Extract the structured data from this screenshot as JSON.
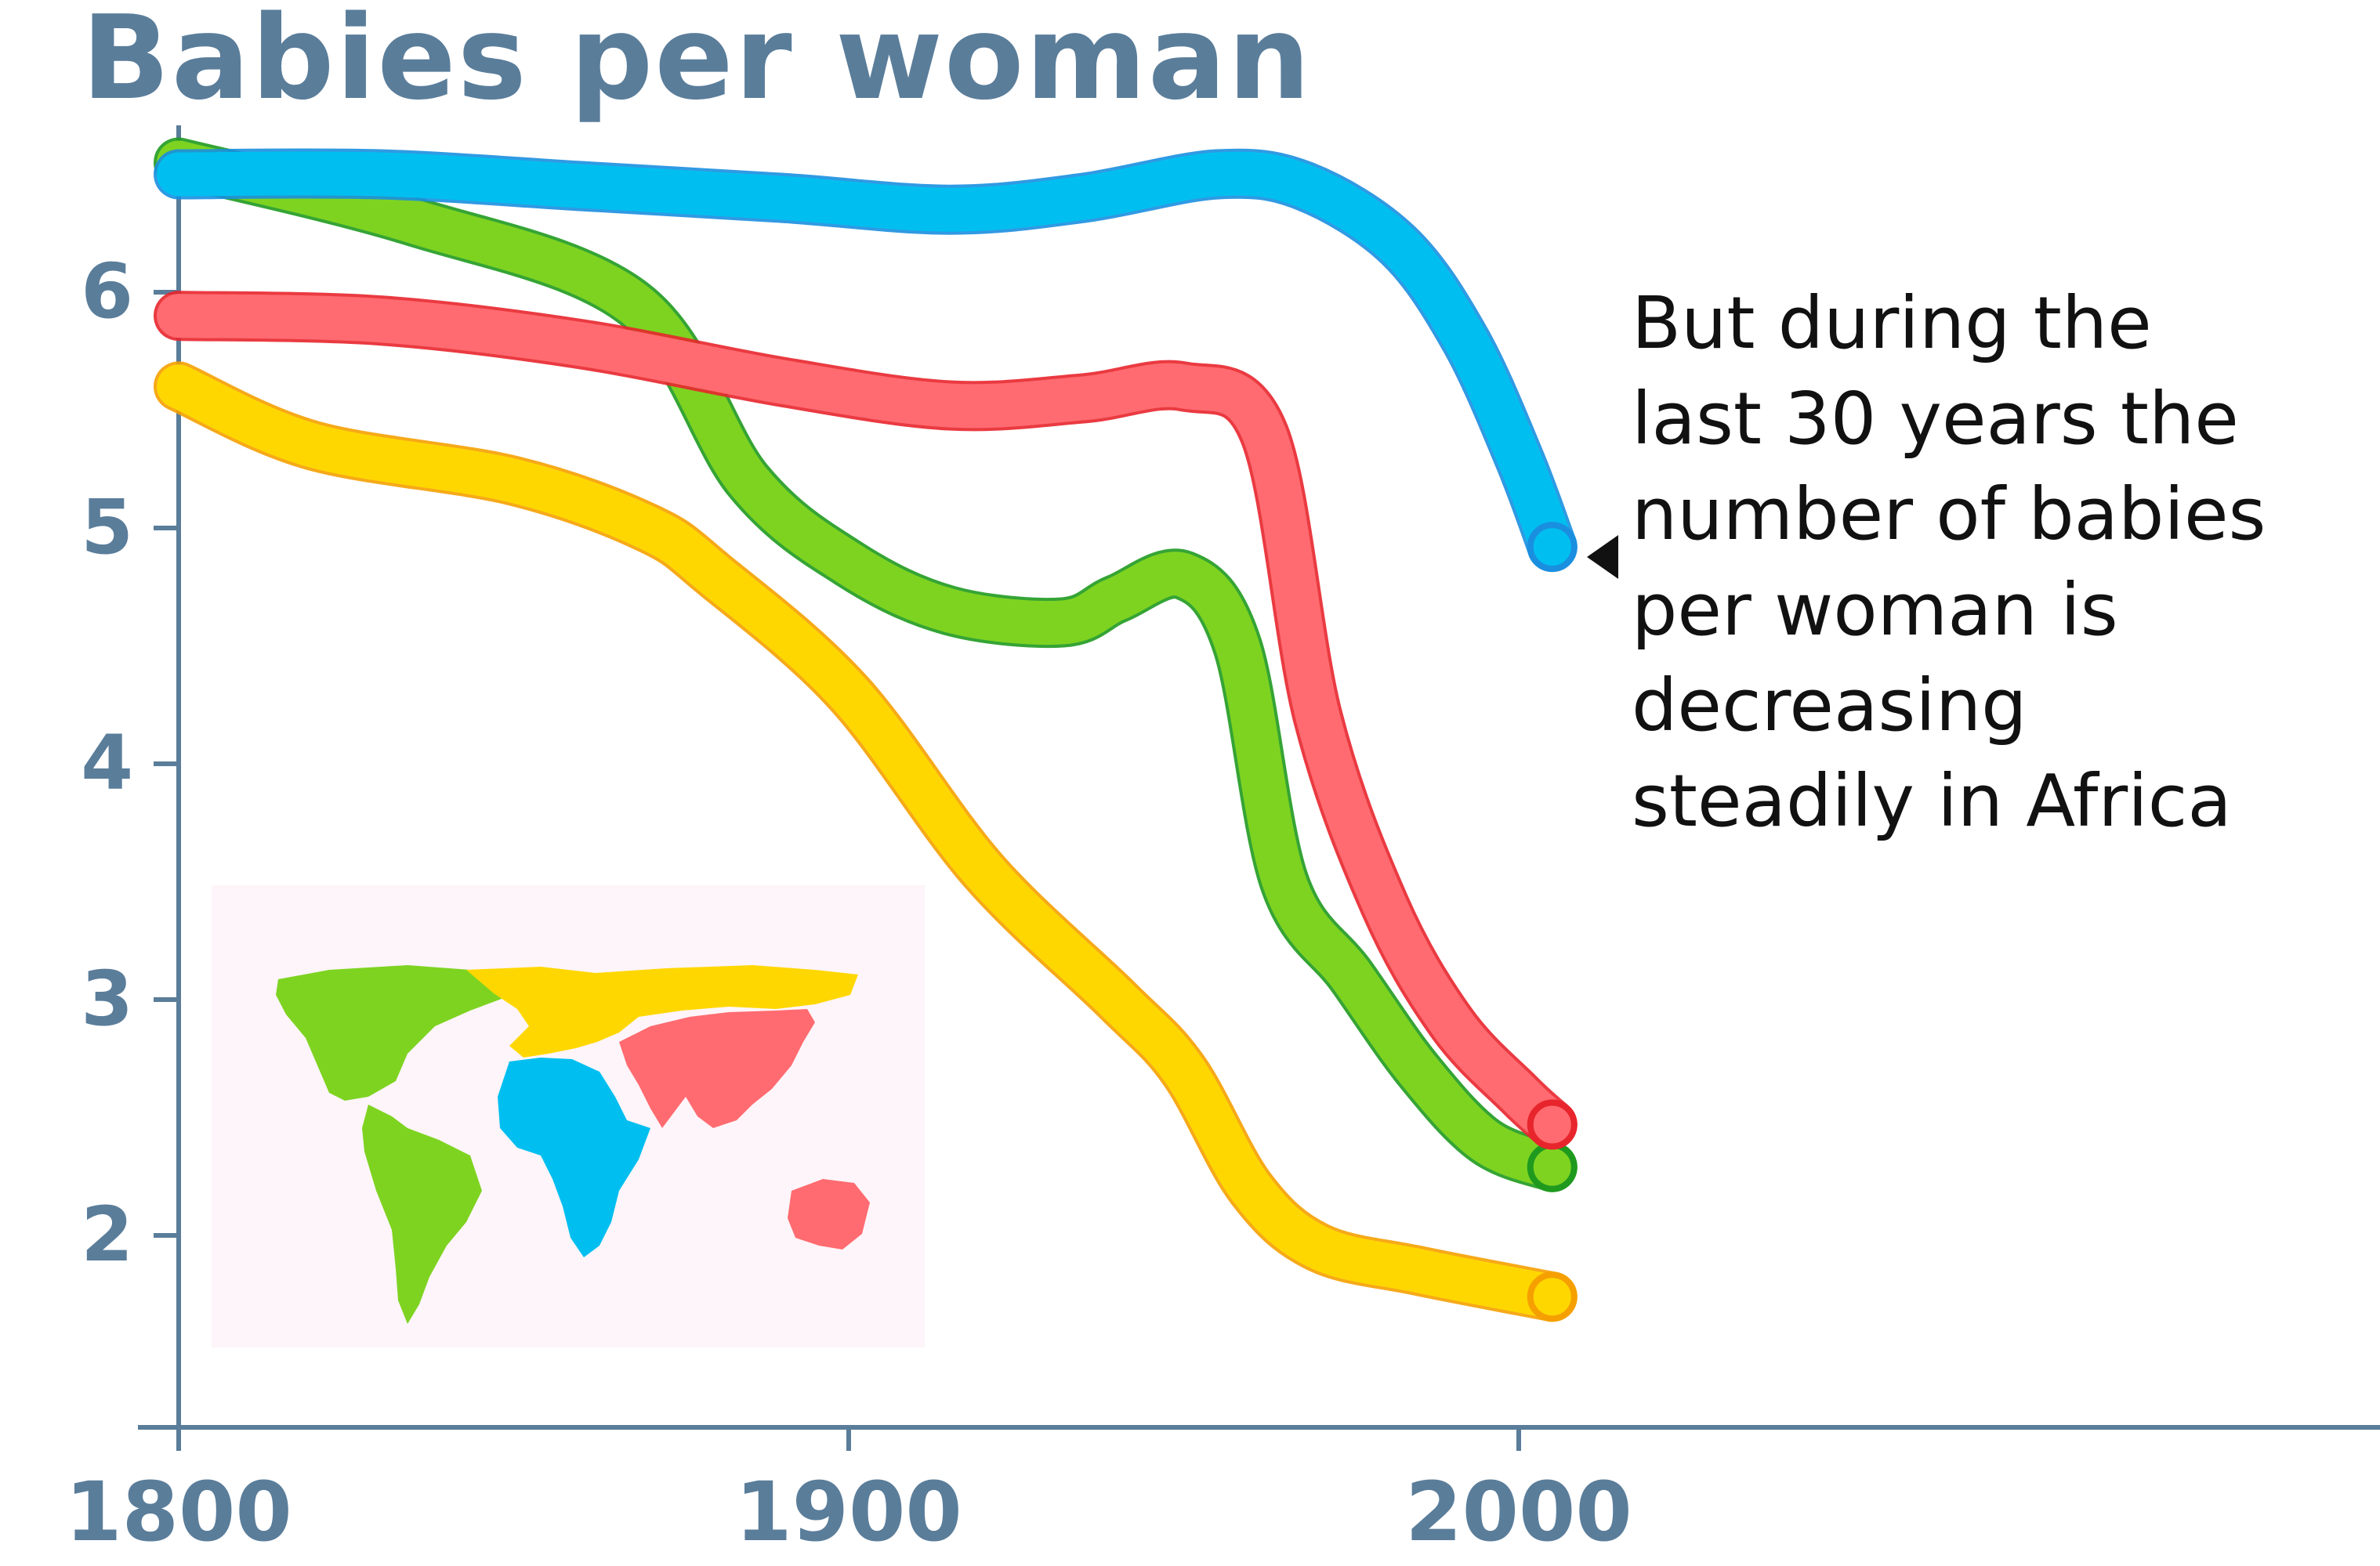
{
  "title": "Babies per woman",
  "annotation": "But during the\nlast 30 years the\nnumber of babies\nper woman is\ndecreasing\nsteadily in Africa",
  "colors": {
    "axis": "#5a7d9a",
    "map_background": "#fdf5f9"
  },
  "legend_map": {
    "type": "world-map",
    "placement": "bottom-left",
    "regions": [
      {
        "region": "Americas",
        "color": "#7ed321"
      },
      {
        "region": "Europe",
        "color": "#ffd700"
      },
      {
        "region": "Africa",
        "color": "#00bff0"
      },
      {
        "region": "Asia",
        "color": "#ff6b70"
      }
    ]
  },
  "chart_data": {
    "type": "line",
    "title": "Babies per woman",
    "xlabel": "",
    "ylabel": "",
    "xlim": [
      1800,
      2130
    ],
    "ylim": [
      1.2,
      6.7
    ],
    "x_ticks": [
      1800,
      1900,
      2000
    ],
    "y_ticks": [
      2,
      3,
      4,
      5,
      6
    ],
    "grid": false,
    "series": [
      {
        "region": "Africa",
        "color": "#00bff0",
        "edge": "#1a8fe0",
        "points": [
          [
            1800,
            6.5
          ],
          [
            1830,
            6.5
          ],
          [
            1860,
            6.45
          ],
          [
            1890,
            6.4
          ],
          [
            1915,
            6.35
          ],
          [
            1935,
            6.4
          ],
          [
            1955,
            6.5
          ],
          [
            1968,
            6.45
          ],
          [
            1982,
            6.2
          ],
          [
            1992,
            5.8
          ],
          [
            2000,
            5.3
          ],
          [
            2005,
            4.92
          ]
        ]
      },
      {
        "region": "Asia",
        "color": "#ff6b70",
        "edge": "#e8252c",
        "points": [
          [
            1800,
            5.9
          ],
          [
            1830,
            5.88
          ],
          [
            1860,
            5.78
          ],
          [
            1890,
            5.62
          ],
          [
            1915,
            5.52
          ],
          [
            1935,
            5.55
          ],
          [
            1950,
            5.6
          ],
          [
            1962,
            5.4
          ],
          [
            1970,
            4.2
          ],
          [
            1980,
            3.4
          ],
          [
            1990,
            2.9
          ],
          [
            2000,
            2.6
          ],
          [
            2005,
            2.47
          ]
        ]
      },
      {
        "region": "Americas",
        "color": "#7ed321",
        "edge": "#1f9a1f",
        "points": [
          [
            1800,
            6.55
          ],
          [
            1835,
            6.3
          ],
          [
            1868,
            5.95
          ],
          [
            1885,
            5.2
          ],
          [
            1900,
            4.85
          ],
          [
            1915,
            4.65
          ],
          [
            1932,
            4.6
          ],
          [
            1940,
            4.7
          ],
          [
            1950,
            4.8
          ],
          [
            1958,
            4.5
          ],
          [
            1965,
            3.5
          ],
          [
            1975,
            3.1
          ],
          [
            1985,
            2.7
          ],
          [
            1995,
            2.4
          ],
          [
            2005,
            2.29
          ]
        ]
      },
      {
        "region": "Europe",
        "color": "#ffd700",
        "edge": "#f5a000",
        "points": [
          [
            1800,
            5.6
          ],
          [
            1820,
            5.35
          ],
          [
            1850,
            5.2
          ],
          [
            1870,
            5.0
          ],
          [
            1880,
            4.8
          ],
          [
            1900,
            4.3
          ],
          [
            1920,
            3.55
          ],
          [
            1940,
            3.0
          ],
          [
            1950,
            2.7
          ],
          [
            1960,
            2.2
          ],
          [
            1970,
            1.95
          ],
          [
            1985,
            1.85
          ],
          [
            2005,
            1.74
          ]
        ]
      }
    ]
  }
}
